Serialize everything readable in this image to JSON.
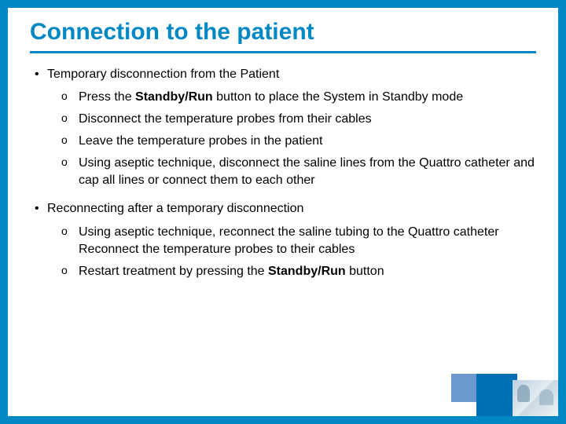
{
  "title": "Connection to the patient",
  "colors": {
    "accent": "#0088c5",
    "swatch": "#6a98cf",
    "block": "#006fb6"
  },
  "section1": {
    "lead": "Temporary disconnection from the Patient",
    "items": {
      "a_pre": "Press the ",
      "a_bold": "Standby/Run",
      "a_post": " button to place the System in Standby mode",
      "b": "Disconnect the temperature probes from their cables",
      "c": "Leave the temperature probes in the patient",
      "d": "Using aseptic technique, disconnect the saline lines from the Quattro catheter and cap all lines or connect them to each other"
    }
  },
  "section2": {
    "lead": "Reconnecting after a temporary disconnection",
    "items": {
      "a": "Using aseptic technique, reconnect the saline tubing to the Quattro catheter Reconnect the temperature probes to their cables",
      "b_pre": "Restart treatment by pressing the ",
      "b_bold": "Standby/Run",
      "b_post": " button"
    }
  }
}
